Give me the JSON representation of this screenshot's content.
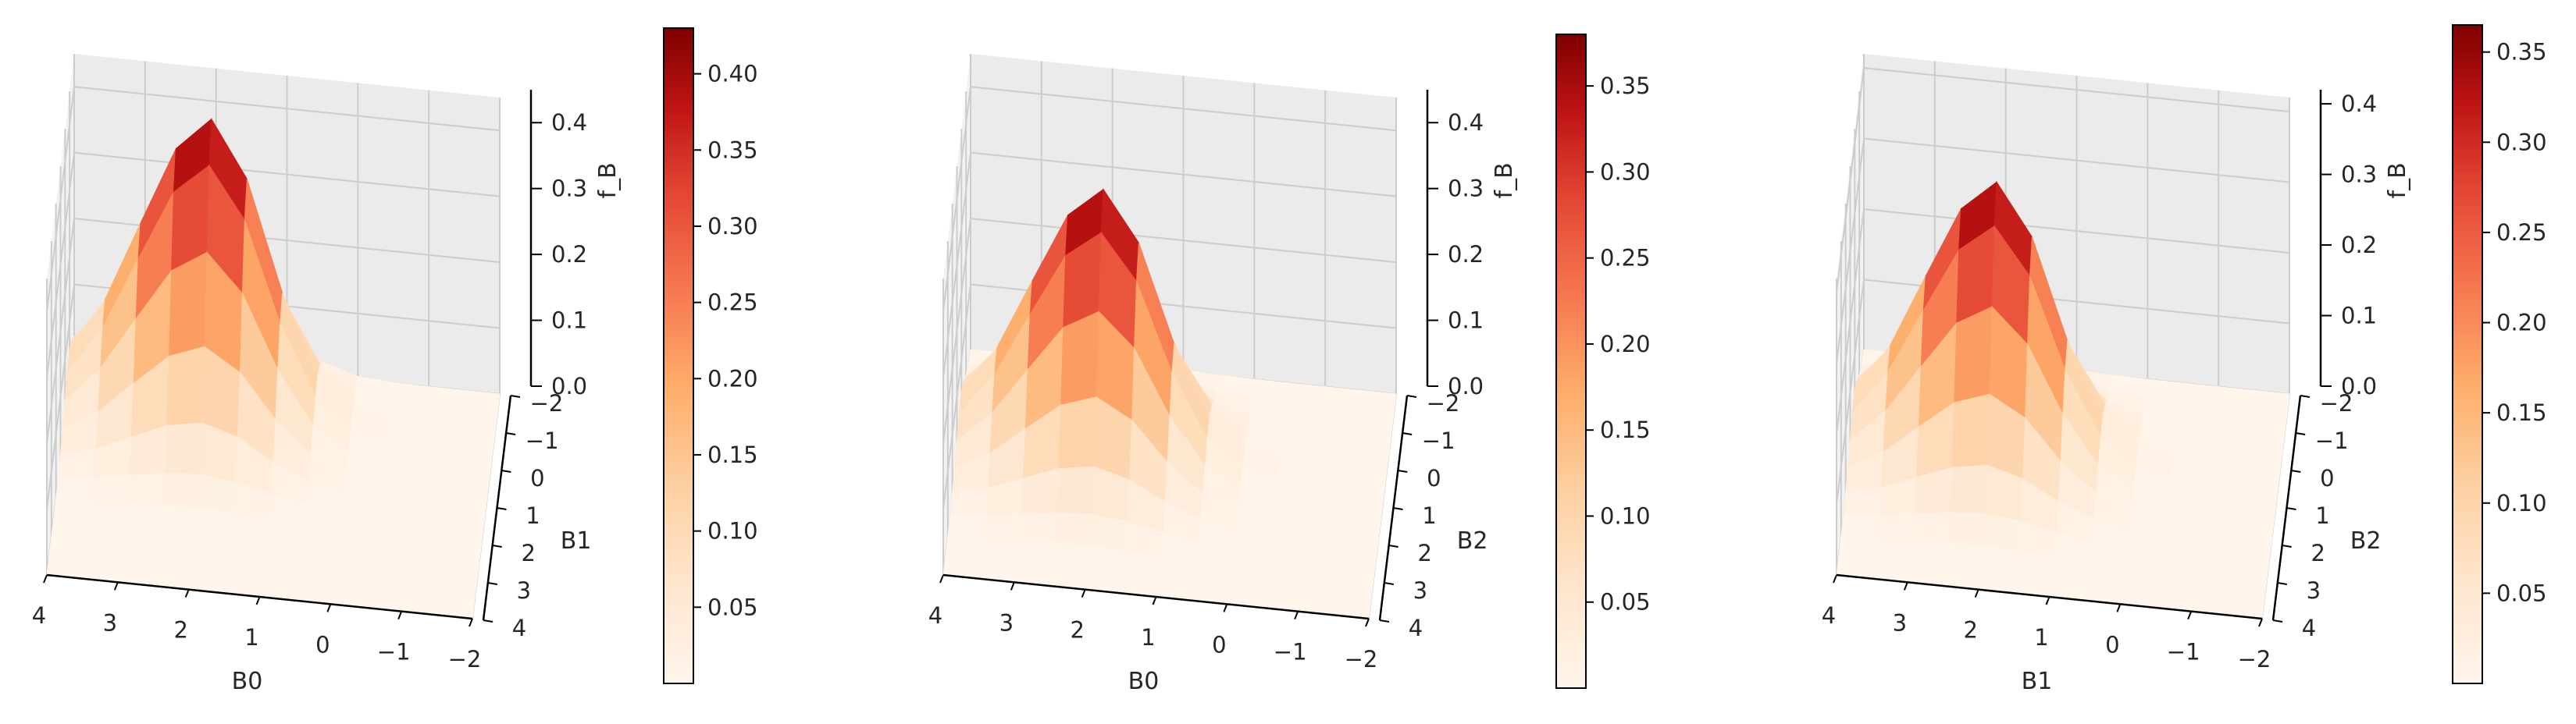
{
  "chart_data": [
    {
      "type": "surface3d",
      "xlabel": "B0",
      "ylabel": "B1",
      "zlabel": "f_B",
      "x_ticks": [
        "4",
        "3",
        "2",
        "1",
        "0",
        "−1",
        "−2"
      ],
      "y_ticks": [
        "−2",
        "−1",
        "0",
        "1",
        "2",
        "3",
        "4"
      ],
      "z_ticks": [
        "0.0",
        "0.1",
        "0.2",
        "0.3",
        "0.4"
      ],
      "xlim": [
        -2,
        4
      ],
      "ylim": [
        -2,
        4
      ],
      "zlim": [
        0,
        0.45
      ],
      "colormap": "OrRd",
      "peak": {
        "x": 2,
        "y": -1,
        "value": 0.43
      },
      "colorbar": {
        "min": 0.0,
        "max": 0.43,
        "ticks": [
          "0.05",
          "0.10",
          "0.15",
          "0.20",
          "0.25",
          "0.30",
          "0.35",
          "0.40"
        ]
      }
    },
    {
      "type": "surface3d",
      "xlabel": "B0",
      "ylabel": "B2",
      "zlabel": "f_B",
      "x_ticks": [
        "4",
        "3",
        "2",
        "1",
        "0",
        "−1",
        "−2"
      ],
      "y_ticks": [
        "−2",
        "−1",
        "0",
        "1",
        "2",
        "3",
        "4"
      ],
      "z_ticks": [
        "0.0",
        "0.1",
        "0.2",
        "0.3",
        "0.4"
      ],
      "xlim": [
        -2,
        4
      ],
      "ylim": [
        -2,
        4
      ],
      "zlim": [
        0,
        0.45
      ],
      "colormap": "OrRd",
      "peak": {
        "x": 2,
        "y": 0,
        "value": 0.38
      },
      "colorbar": {
        "min": 0.0,
        "max": 0.38,
        "ticks": [
          "0.05",
          "0.10",
          "0.15",
          "0.20",
          "0.25",
          "0.30",
          "0.35"
        ]
      }
    },
    {
      "type": "surface3d",
      "xlabel": "B1",
      "ylabel": "B2",
      "zlabel": "f_B",
      "x_ticks": [
        "4",
        "3",
        "2",
        "1",
        "0",
        "−1",
        "−2"
      ],
      "y_ticks": [
        "−2",
        "−1",
        "0",
        "1",
        "2",
        "3",
        "4"
      ],
      "z_ticks": [
        "0.0",
        "0.1",
        "0.2",
        "0.3",
        "0.4"
      ],
      "xlim": [
        -2,
        4
      ],
      "ylim": [
        -2,
        4
      ],
      "zlim": [
        0,
        0.42
      ],
      "colormap": "OrRd",
      "peak": {
        "x": 2,
        "y": 0,
        "value": 0.365
      },
      "colorbar": {
        "min": 0.0,
        "max": 0.365,
        "ticks": [
          "0.05",
          "0.10",
          "0.15",
          "0.20",
          "0.25",
          "0.30",
          "0.35"
        ]
      }
    }
  ]
}
